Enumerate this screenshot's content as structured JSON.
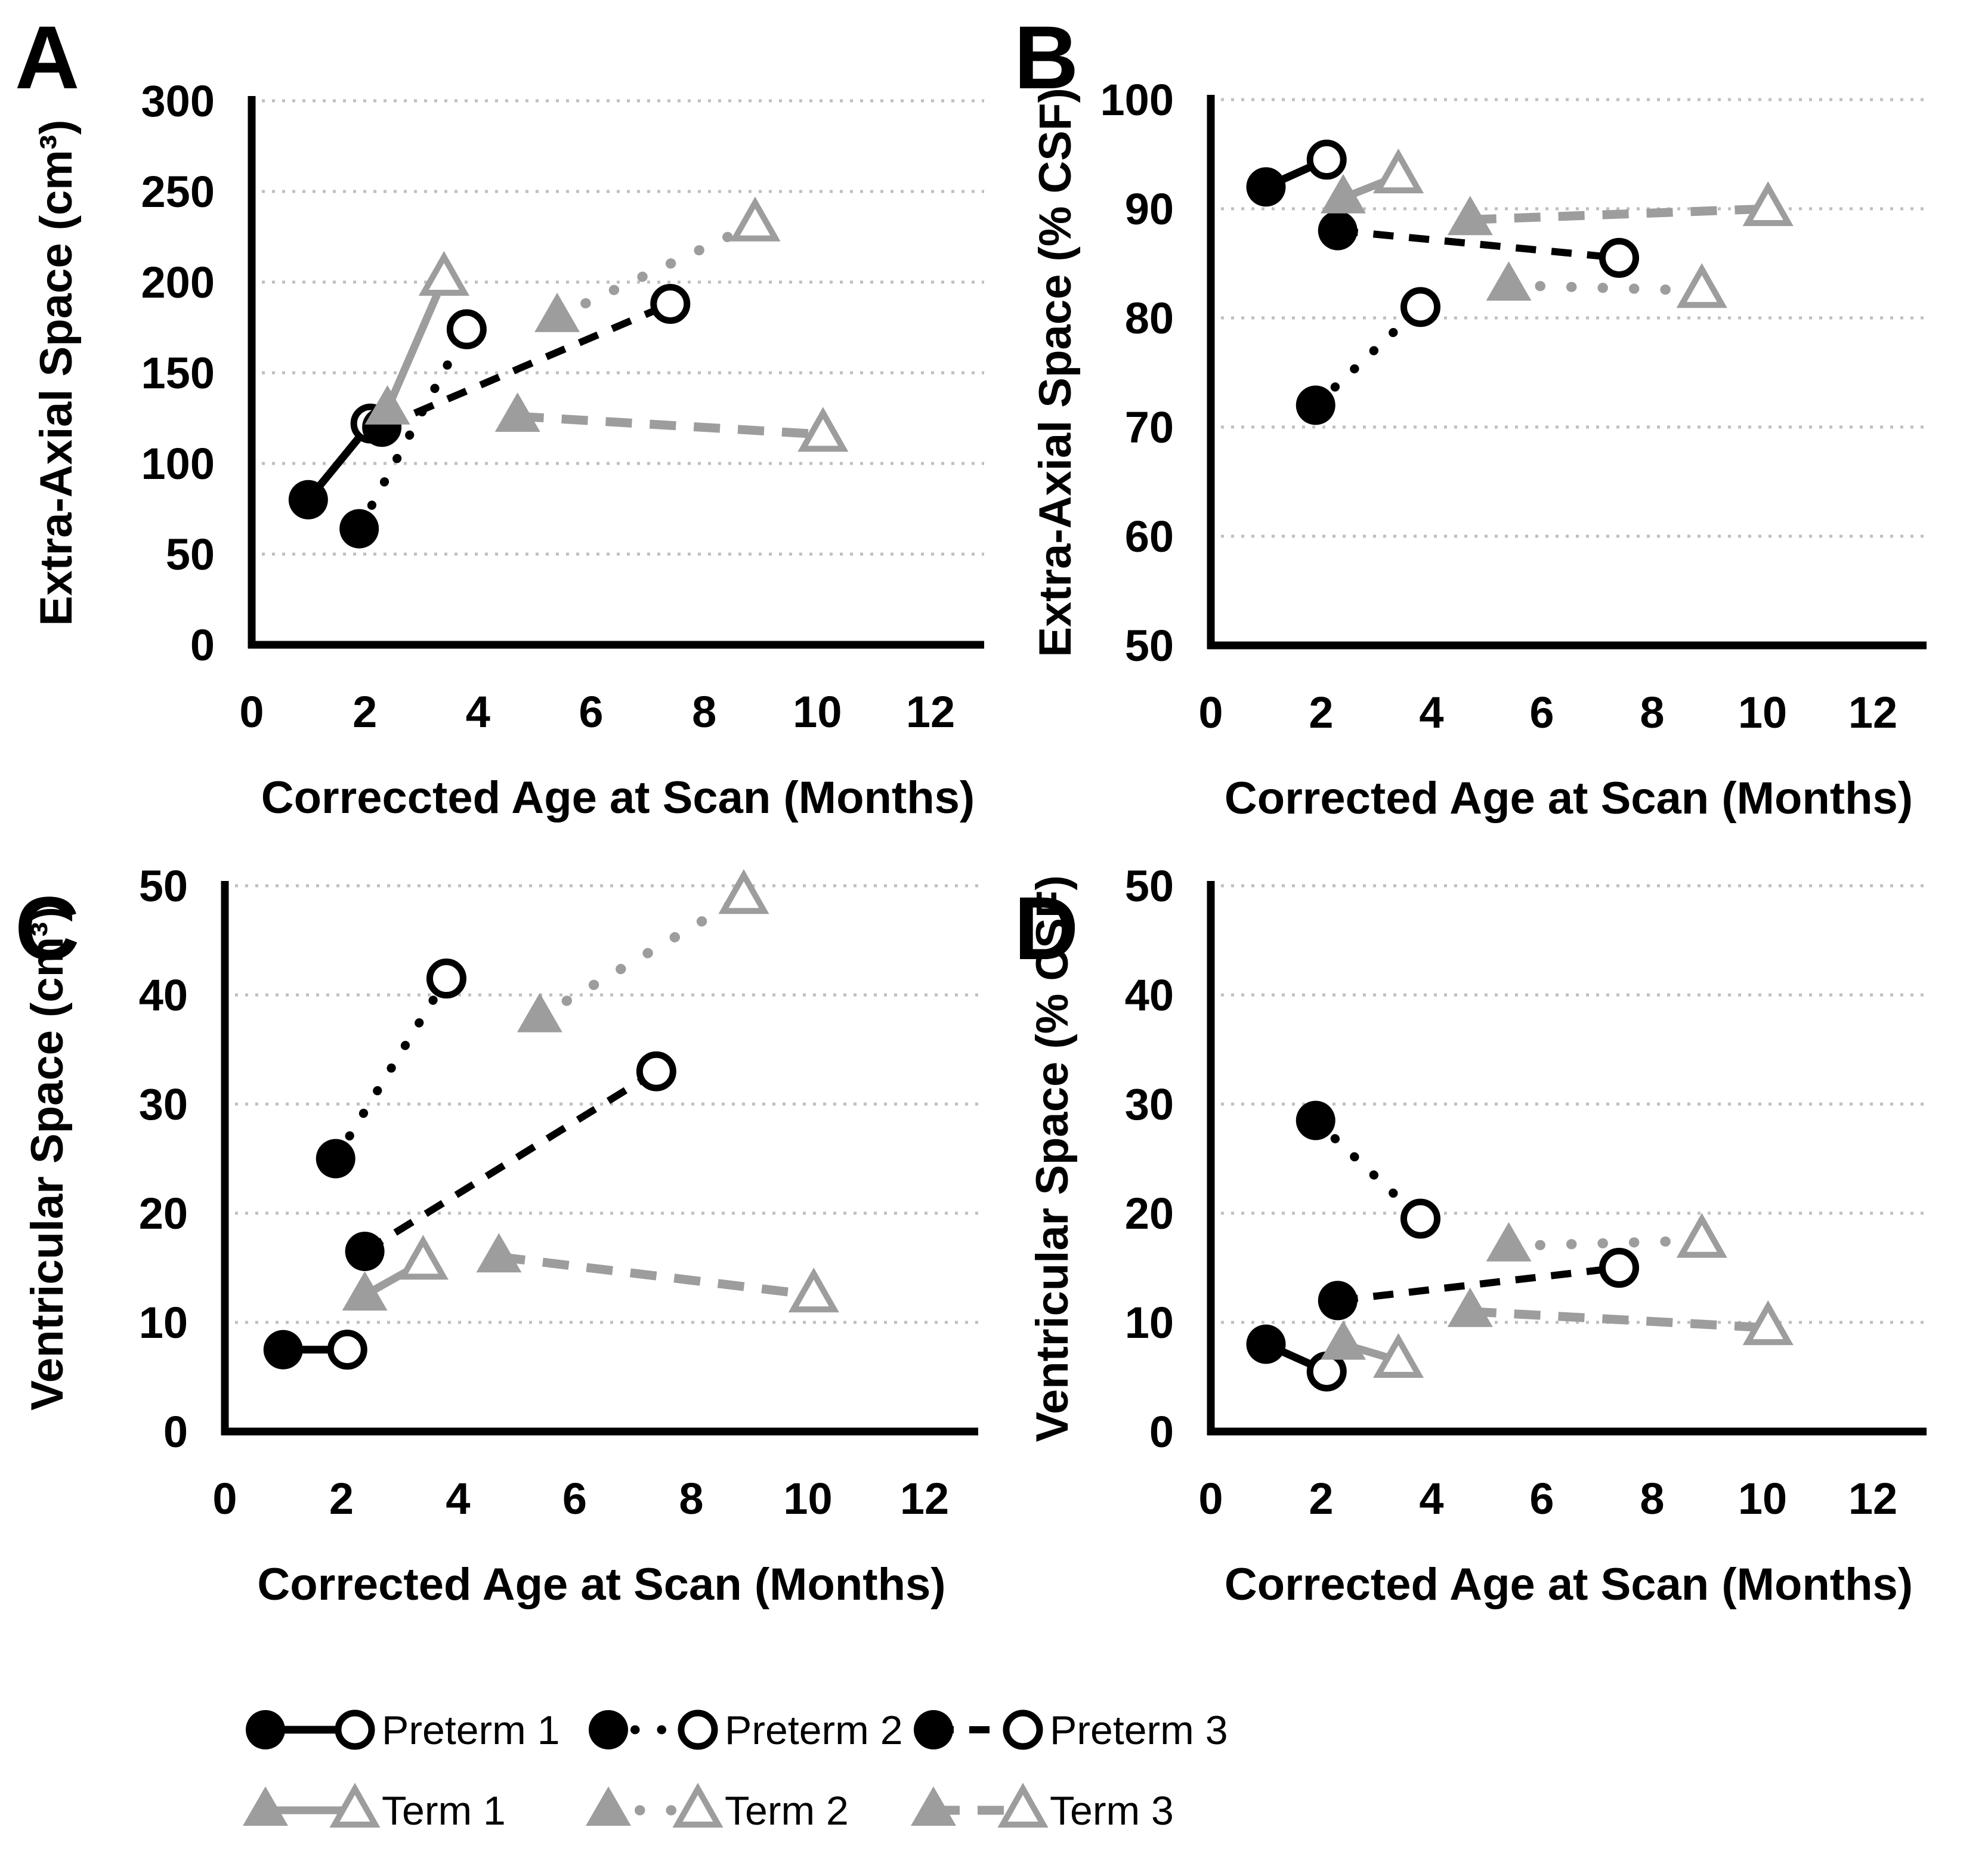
{
  "figure_background": "#ffffff",
  "colors": {
    "preterm": "#000000",
    "term": "#9d9d9d",
    "gridline": "#bfbfbf",
    "axis": "#000000",
    "open_marker_fill": "#ffffff"
  },
  "series_styles": [
    {
      "name": "Preterm 1",
      "color_key": "preterm",
      "line": "solid",
      "marker": "circle",
      "scan1_marker": "filled",
      "scan2_marker": "open"
    },
    {
      "name": "Preterm 2",
      "color_key": "preterm",
      "line": "dotted",
      "marker": "circle",
      "scan1_marker": "filled",
      "scan2_marker": "open"
    },
    {
      "name": "Preterm 3",
      "color_key": "preterm",
      "line": "dashed",
      "marker": "circle",
      "scan1_marker": "filled",
      "scan2_marker": "open"
    },
    {
      "name": "Term 1",
      "color_key": "term",
      "line": "solid",
      "marker": "triangle",
      "scan1_marker": "filled",
      "scan2_marker": "open"
    },
    {
      "name": "Term 2",
      "color_key": "term",
      "line": "dotted",
      "marker": "triangle",
      "scan1_marker": "filled",
      "scan2_marker": "open"
    },
    {
      "name": "Term 3",
      "color_key": "term",
      "line": "dashed",
      "marker": "triangle",
      "scan1_marker": "filled",
      "scan2_marker": "open"
    }
  ],
  "chart_data": [
    {
      "type": "scatter",
      "panel_label": "A",
      "title": "",
      "xlabel": "Correccted Age at Scan (Months)",
      "ylabel": "Extra-Axial Space (cm³)",
      "xlim": [
        0,
        12
      ],
      "ylim": [
        0,
        300
      ],
      "xticks": [
        0,
        2,
        4,
        6,
        8,
        10,
        12
      ],
      "yticks": [
        0,
        50,
        100,
        150,
        200,
        250,
        300
      ],
      "grid": "horizontal-dotted",
      "series": [
        {
          "name": "Preterm 1",
          "points": [
            [
              1.0,
              80
            ],
            [
              2.1,
              122
            ]
          ]
        },
        {
          "name": "Preterm 2",
          "points": [
            [
              1.9,
              64
            ],
            [
              3.8,
              174
            ]
          ]
        },
        {
          "name": "Preterm 3",
          "points": [
            [
              2.3,
              120
            ],
            [
              7.4,
              188
            ]
          ]
        },
        {
          "name": "Term 1",
          "points": [
            [
              2.4,
              130
            ],
            [
              3.4,
              202
            ]
          ]
        },
        {
          "name": "Term 2",
          "points": [
            [
              5.4,
              181
            ],
            [
              8.9,
              232
            ]
          ]
        },
        {
          "name": "Term 3",
          "points": [
            [
              4.7,
              126
            ],
            [
              10.1,
              116
            ]
          ]
        }
      ]
    },
    {
      "type": "scatter",
      "panel_label": "B",
      "title": "",
      "xlabel": "Corrected Age at Scan (Months)",
      "ylabel": "Extra-Axial Space (% CSF)",
      "xlim": [
        0,
        12
      ],
      "ylim": [
        50,
        100
      ],
      "xticks": [
        0,
        2,
        4,
        6,
        8,
        10,
        12
      ],
      "yticks": [
        50,
        60,
        70,
        80,
        90,
        100
      ],
      "grid": "horizontal-dotted",
      "series": [
        {
          "name": "Preterm 1",
          "points": [
            [
              1.0,
              92
            ],
            [
              2.1,
              94.5
            ]
          ]
        },
        {
          "name": "Preterm 2",
          "points": [
            [
              1.9,
              72
            ],
            [
              3.8,
              81
            ]
          ]
        },
        {
          "name": "Preterm 3",
          "points": [
            [
              2.3,
              88
            ],
            [
              7.4,
              85.5
            ]
          ]
        },
        {
          "name": "Term 1",
          "points": [
            [
              2.4,
              91
            ],
            [
              3.4,
              93
            ]
          ]
        },
        {
          "name": "Term 2",
          "points": [
            [
              5.4,
              83
            ],
            [
              8.9,
              82.5
            ]
          ]
        },
        {
          "name": "Term 3",
          "points": [
            [
              4.7,
              89
            ],
            [
              10.1,
              90
            ]
          ]
        }
      ]
    },
    {
      "type": "scatter",
      "panel_label": "C",
      "title": "",
      "xlabel": "Corrected Age at Scan (Months)",
      "ylabel": "Ventricular Space (cm³)",
      "xlim": [
        0,
        12
      ],
      "ylim": [
        0,
        50
      ],
      "xticks": [
        0,
        2,
        4,
        6,
        8,
        10,
        12
      ],
      "yticks": [
        0,
        10,
        20,
        30,
        40,
        50
      ],
      "grid": "horizontal-dotted",
      "series": [
        {
          "name": "Preterm 1",
          "points": [
            [
              1.0,
              7.5
            ],
            [
              2.1,
              7.5
            ]
          ]
        },
        {
          "name": "Preterm 2",
          "points": [
            [
              1.9,
              25
            ],
            [
              3.8,
              41.5
            ]
          ]
        },
        {
          "name": "Preterm 3",
          "points": [
            [
              2.4,
              16.5
            ],
            [
              7.4,
              33
            ]
          ]
        },
        {
          "name": "Term 1",
          "points": [
            [
              2.4,
              12.5
            ],
            [
              3.4,
              15.5
            ]
          ]
        },
        {
          "name": "Term 2",
          "points": [
            [
              5.4,
              38
            ],
            [
              8.9,
              49
            ]
          ]
        },
        {
          "name": "Term 3",
          "points": [
            [
              4.7,
              16
            ],
            [
              10.1,
              12.5
            ]
          ]
        }
      ]
    },
    {
      "type": "scatter",
      "panel_label": "D",
      "title": "",
      "xlabel": "Corrected Age at Scan (Months)",
      "ylabel": "Ventricular Space (% CSF)",
      "xlim": [
        0,
        12
      ],
      "ylim": [
        0,
        50
      ],
      "xticks": [
        0,
        2,
        4,
        6,
        8,
        10,
        12
      ],
      "yticks": [
        0,
        10,
        20,
        30,
        40,
        50
      ],
      "grid": "horizontal-dotted",
      "series": [
        {
          "name": "Preterm 1",
          "points": [
            [
              1.0,
              8
            ],
            [
              2.1,
              5.5
            ]
          ]
        },
        {
          "name": "Preterm 2",
          "points": [
            [
              1.9,
              28.5
            ],
            [
              3.8,
              19.5
            ]
          ]
        },
        {
          "name": "Preterm 3",
          "points": [
            [
              2.3,
              12
            ],
            [
              7.4,
              15
            ]
          ]
        },
        {
          "name": "Term 1",
          "points": [
            [
              2.4,
              8
            ],
            [
              3.4,
              6.5
            ]
          ]
        },
        {
          "name": "Term 2",
          "points": [
            [
              5.4,
              17
            ],
            [
              8.9,
              17.5
            ]
          ]
        },
        {
          "name": "Term 3",
          "points": [
            [
              4.7,
              11
            ],
            [
              10.1,
              9.5
            ]
          ]
        }
      ]
    }
  ],
  "legend": {
    "position": "bottom",
    "rows": [
      [
        "Preterm 1",
        "Preterm 2",
        "Preterm 3"
      ],
      [
        "Term 1",
        "Term 2",
        "Term 3"
      ]
    ]
  }
}
